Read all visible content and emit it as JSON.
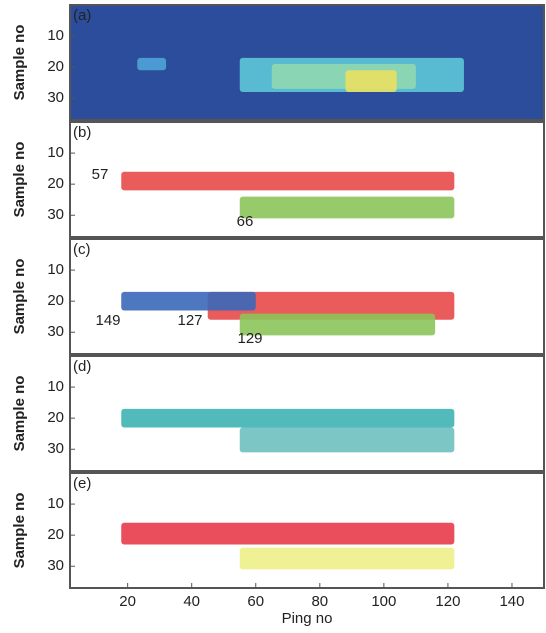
{
  "chart_data": [
    {
      "type": "heatmap",
      "panel_label": "(a)",
      "ylabel": "Sample no",
      "background": "#2b4d9b",
      "ylim": [
        0,
        37
      ],
      "yticks": [
        10,
        20,
        30
      ],
      "xlim": [
        2,
        150
      ],
      "series": [
        {
          "color": "#4fa3d9",
          "x": [
            23,
            32
          ],
          "y": [
            17,
            21
          ]
        },
        {
          "color": "#5ec8d8",
          "x": [
            55,
            125
          ],
          "y": [
            17,
            28
          ]
        },
        {
          "color": "#8fd8b0",
          "x": [
            65,
            110
          ],
          "y": [
            19,
            27
          ]
        },
        {
          "color": "#e8e060",
          "x": [
            88,
            104
          ],
          "y": [
            21,
            28
          ]
        }
      ],
      "annotations": []
    },
    {
      "type": "heatmap",
      "panel_label": "(b)",
      "ylabel": "Sample no",
      "background": "#ffffff",
      "ylim": [
        0,
        37
      ],
      "yticks": [
        10,
        20,
        30
      ],
      "xlim": [
        2,
        150
      ],
      "series": [
        {
          "color": "#e84a4a",
          "x": [
            18,
            122
          ],
          "y": [
            16,
            22
          ]
        },
        {
          "color": "#8cc45a",
          "x": [
            55,
            122
          ],
          "y": [
            24,
            31
          ]
        }
      ],
      "annotations": [
        "57",
        "66"
      ]
    },
    {
      "type": "heatmap",
      "panel_label": "(c)",
      "ylabel": "Sample no",
      "background": "#ffffff",
      "ylim": [
        0,
        37
      ],
      "yticks": [
        10,
        20,
        30
      ],
      "xlim": [
        2,
        150
      ],
      "series": [
        {
          "color": "#e84a4a",
          "x": [
            45,
            122
          ],
          "y": [
            17,
            26
          ]
        },
        {
          "color": "#3a68b8",
          "x": [
            18,
            60
          ],
          "y": [
            17,
            23
          ]
        },
        {
          "color": "#8cc45a",
          "x": [
            55,
            116
          ],
          "y": [
            24,
            31
          ]
        }
      ],
      "annotations": [
        "149",
        "127",
        "129"
      ]
    },
    {
      "type": "heatmap",
      "panel_label": "(d)",
      "ylabel": "Sample no",
      "background": "#ffffff",
      "ylim": [
        0,
        37
      ],
      "yticks": [
        10,
        20,
        30
      ],
      "xlim": [
        2,
        150
      ],
      "series": [
        {
          "color": "#3fb3b3",
          "x": [
            18,
            122
          ],
          "y": [
            17,
            23
          ]
        },
        {
          "color": "#6ec0c0",
          "x": [
            55,
            122
          ],
          "y": [
            23,
            31
          ]
        }
      ],
      "annotations": []
    },
    {
      "type": "heatmap",
      "panel_label": "(e)",
      "ylabel": "Sample no",
      "background": "#ffffff",
      "ylim": [
        0,
        37
      ],
      "yticks": [
        10,
        20,
        30
      ],
      "xlim": [
        2,
        150
      ],
      "xlabel": "Ping no",
      "xticks": [
        20,
        40,
        60,
        80,
        100,
        120,
        140
      ],
      "series": [
        {
          "color": "#e83a4a",
          "x": [
            18,
            122
          ],
          "y": [
            16,
            23
          ]
        },
        {
          "color": "#eeee88",
          "x": [
            55,
            122
          ],
          "y": [
            24,
            31
          ]
        }
      ],
      "annotations": []
    }
  ]
}
